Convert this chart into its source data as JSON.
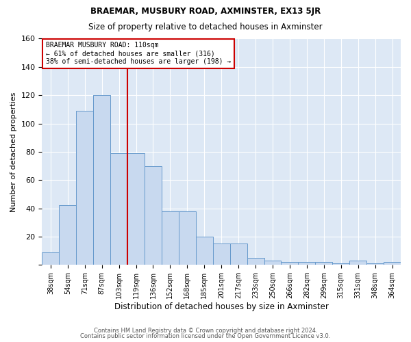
{
  "title": "BRAEMAR, MUSBURY ROAD, AXMINSTER, EX13 5JR",
  "subtitle": "Size of property relative to detached houses in Axminster",
  "xlabel": "Distribution of detached houses by size in Axminster",
  "ylabel": "Number of detached properties",
  "categories": [
    "38sqm",
    "54sqm",
    "71sqm",
    "87sqm",
    "103sqm",
    "119sqm",
    "136sqm",
    "152sqm",
    "168sqm",
    "185sqm",
    "201sqm",
    "217sqm",
    "233sqm",
    "250sqm",
    "266sqm",
    "282sqm",
    "299sqm",
    "315sqm",
    "331sqm",
    "348sqm",
    "364sqm"
  ],
  "values": [
    9,
    42,
    109,
    120,
    79,
    79,
    70,
    38,
    38,
    20,
    15,
    15,
    5,
    3,
    2,
    2,
    2,
    1,
    3,
    1,
    2
  ],
  "bar_color": "#c8d9ef",
  "bar_edge_color": "#6699cc",
  "property_label": "BRAEMAR MUSBURY ROAD: 110sqm",
  "pct_smaller_label": "← 61% of detached houses are smaller (316)",
  "pct_larger_label": "38% of semi-detached houses are larger (198) →",
  "annotation_box_color": "#cc0000",
  "ylim": [
    0,
    160
  ],
  "yticks": [
    0,
    20,
    40,
    60,
    80,
    100,
    120,
    140,
    160
  ],
  "background_color": "#dde8f5",
  "grid_color": "#ffffff",
  "footer1": "Contains HM Land Registry data © Crown copyright and database right 2024.",
  "footer2": "Contains public sector information licensed under the Open Government Licence v3.0."
}
